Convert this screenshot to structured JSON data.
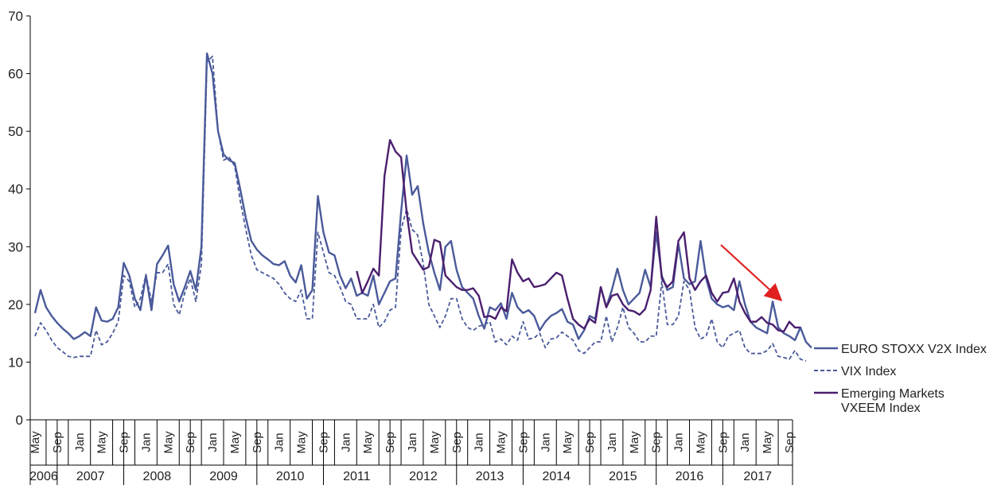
{
  "chart_data": {
    "type": "line",
    "title": "",
    "xlabel": "",
    "ylabel": "",
    "ylim": [
      0,
      70
    ],
    "yticks": [
      0,
      10,
      20,
      30,
      40,
      50,
      60,
      70
    ],
    "x_start": "2006-05",
    "x_end": "2017-09",
    "month_labels": [
      "Jan",
      "May",
      "Sep"
    ],
    "years": [
      "2006",
      "2007",
      "2008",
      "2009",
      "2010",
      "2011",
      "2012",
      "2013",
      "2014",
      "2015",
      "2016",
      "2017"
    ],
    "legend_position": "right",
    "series": [
      {
        "name": "EURO STOXX V2X Index",
        "color": "#4a5a9a",
        "dash": "solid",
        "start": "2006-05",
        "values": [
          18.5,
          22.5,
          19.5,
          18,
          16.8,
          15.8,
          15,
          14,
          14.5,
          15.2,
          14.5,
          19.5,
          17.2,
          17,
          17.5,
          19.5,
          27.2,
          25,
          21,
          19,
          25,
          19,
          27,
          28.5,
          30.2,
          23.5,
          20.5,
          23,
          25.8,
          22.5,
          30,
          63.5,
          60,
          50,
          46,
          45,
          44.5,
          40,
          35,
          31,
          29.5,
          28.5,
          27.8,
          27,
          26.8,
          27.5,
          25,
          23.8,
          26.8,
          21,
          22.5,
          38.8,
          32.5,
          29,
          28.5,
          25,
          22.8,
          24.5,
          21.5,
          22,
          21.5,
          25,
          20,
          22,
          24,
          24.5,
          36,
          45.8,
          39,
          40.5,
          34,
          29,
          25.5,
          22.5,
          30,
          31,
          26,
          23,
          22,
          21,
          18,
          15.8,
          19.5,
          19,
          20.2,
          17.5,
          22,
          19.5,
          18.5,
          19,
          18,
          15.5,
          17,
          18,
          18.5,
          19.2,
          17,
          16.5,
          14,
          15.5,
          18,
          17.5,
          23,
          19.5,
          22.5,
          26.2,
          22.5,
          20,
          21,
          22,
          26,
          23,
          32.5,
          25,
          22.5,
          23,
          30.5,
          24.5,
          23.5,
          24,
          31,
          24.5,
          21,
          20,
          19.5,
          19.8,
          19,
          24,
          20,
          17,
          16,
          15.5,
          15,
          20.5,
          16,
          15,
          14.5,
          13.8,
          16,
          13.5,
          12.5
        ],
        "legend_label": "EURO STOXX V2X Index"
      },
      {
        "name": "VIX Index",
        "color": "#4a5a9a",
        "dash": "dashed",
        "start": "2006-05",
        "values": [
          14.5,
          16.8,
          15.5,
          13.8,
          12.5,
          11.8,
          11,
          10.8,
          11,
          11,
          11,
          15.5,
          13,
          13.5,
          15,
          17,
          25,
          24,
          19.5,
          21,
          25.2,
          20.5,
          25.5,
          25.5,
          27,
          20,
          18.2,
          22,
          24.5,
          20.5,
          27,
          62,
          63,
          50,
          45,
          45.5,
          44,
          38,
          33,
          28.5,
          26,
          25.5,
          25,
          24.5,
          23.5,
          22,
          21,
          20.5,
          22.5,
          17.5,
          17.5,
          32.5,
          29,
          25.5,
          25,
          23,
          20.5,
          20,
          17.5,
          17.5,
          17.5,
          20,
          16,
          17,
          19,
          19.5,
          33,
          36.5,
          33,
          32,
          27,
          20,
          18,
          16,
          18,
          21,
          21,
          17.5,
          16,
          15.5,
          16.2,
          16.5,
          17,
          13.5,
          14,
          13,
          14.5,
          13.8,
          17,
          14,
          14.2,
          15,
          12.5,
          14,
          14.2,
          15.2,
          14.5,
          13.8,
          12,
          11.5,
          12.5,
          13.5,
          13.5,
          18,
          13.5,
          16,
          19.5,
          16,
          15,
          13.5,
          13.5,
          14.5,
          14.5,
          24,
          16.5,
          16.5,
          18,
          24,
          22.5,
          16,
          14,
          14.5,
          17.5,
          13.5,
          12.5,
          14.5,
          15,
          15.5,
          12.5,
          11.5,
          11.5,
          11.5,
          12,
          13.2,
          11,
          10.8,
          10.5,
          12,
          10.5,
          10.2
        ],
        "legend_label": "VIX Index"
      },
      {
        "name": "Emerging Markets VXEEM Index",
        "color": "#4b1f6e",
        "dash": "solid",
        "start": "2011-03",
        "values": [
          25.8,
          22,
          24,
          26.2,
          25,
          42.2,
          48.5,
          46.5,
          45.5,
          36,
          29,
          27.5,
          26,
          26.5,
          31.2,
          30.8,
          25,
          24,
          23,
          22.5,
          22.5,
          22.8,
          21.5,
          17.8,
          18,
          17.5,
          19.5,
          18.8,
          27.8,
          25.5,
          24,
          24.5,
          23,
          23.2,
          23.5,
          24.5,
          25.5,
          25,
          21,
          17.5,
          16.5,
          15.8,
          17.5,
          16.8,
          23,
          19.5,
          21.5,
          21.8,
          20,
          19,
          18.8,
          18.2,
          19.2,
          22.5,
          35.2,
          24.5,
          23,
          24,
          31,
          32.5,
          24.5,
          22.5,
          24,
          25,
          22,
          20.5,
          22,
          22.2,
          24.5,
          20.5,
          18.5,
          17,
          17,
          17.8,
          16.8,
          16.5,
          15.5,
          15.3,
          17,
          16,
          16
        ],
        "legend_label_line1": "Emerging Markets",
        "legend_label_line2": "VXEEM Index"
      }
    ],
    "annotation": {
      "type": "arrow",
      "color": "#e02020",
      "description": "downward trend"
    }
  }
}
